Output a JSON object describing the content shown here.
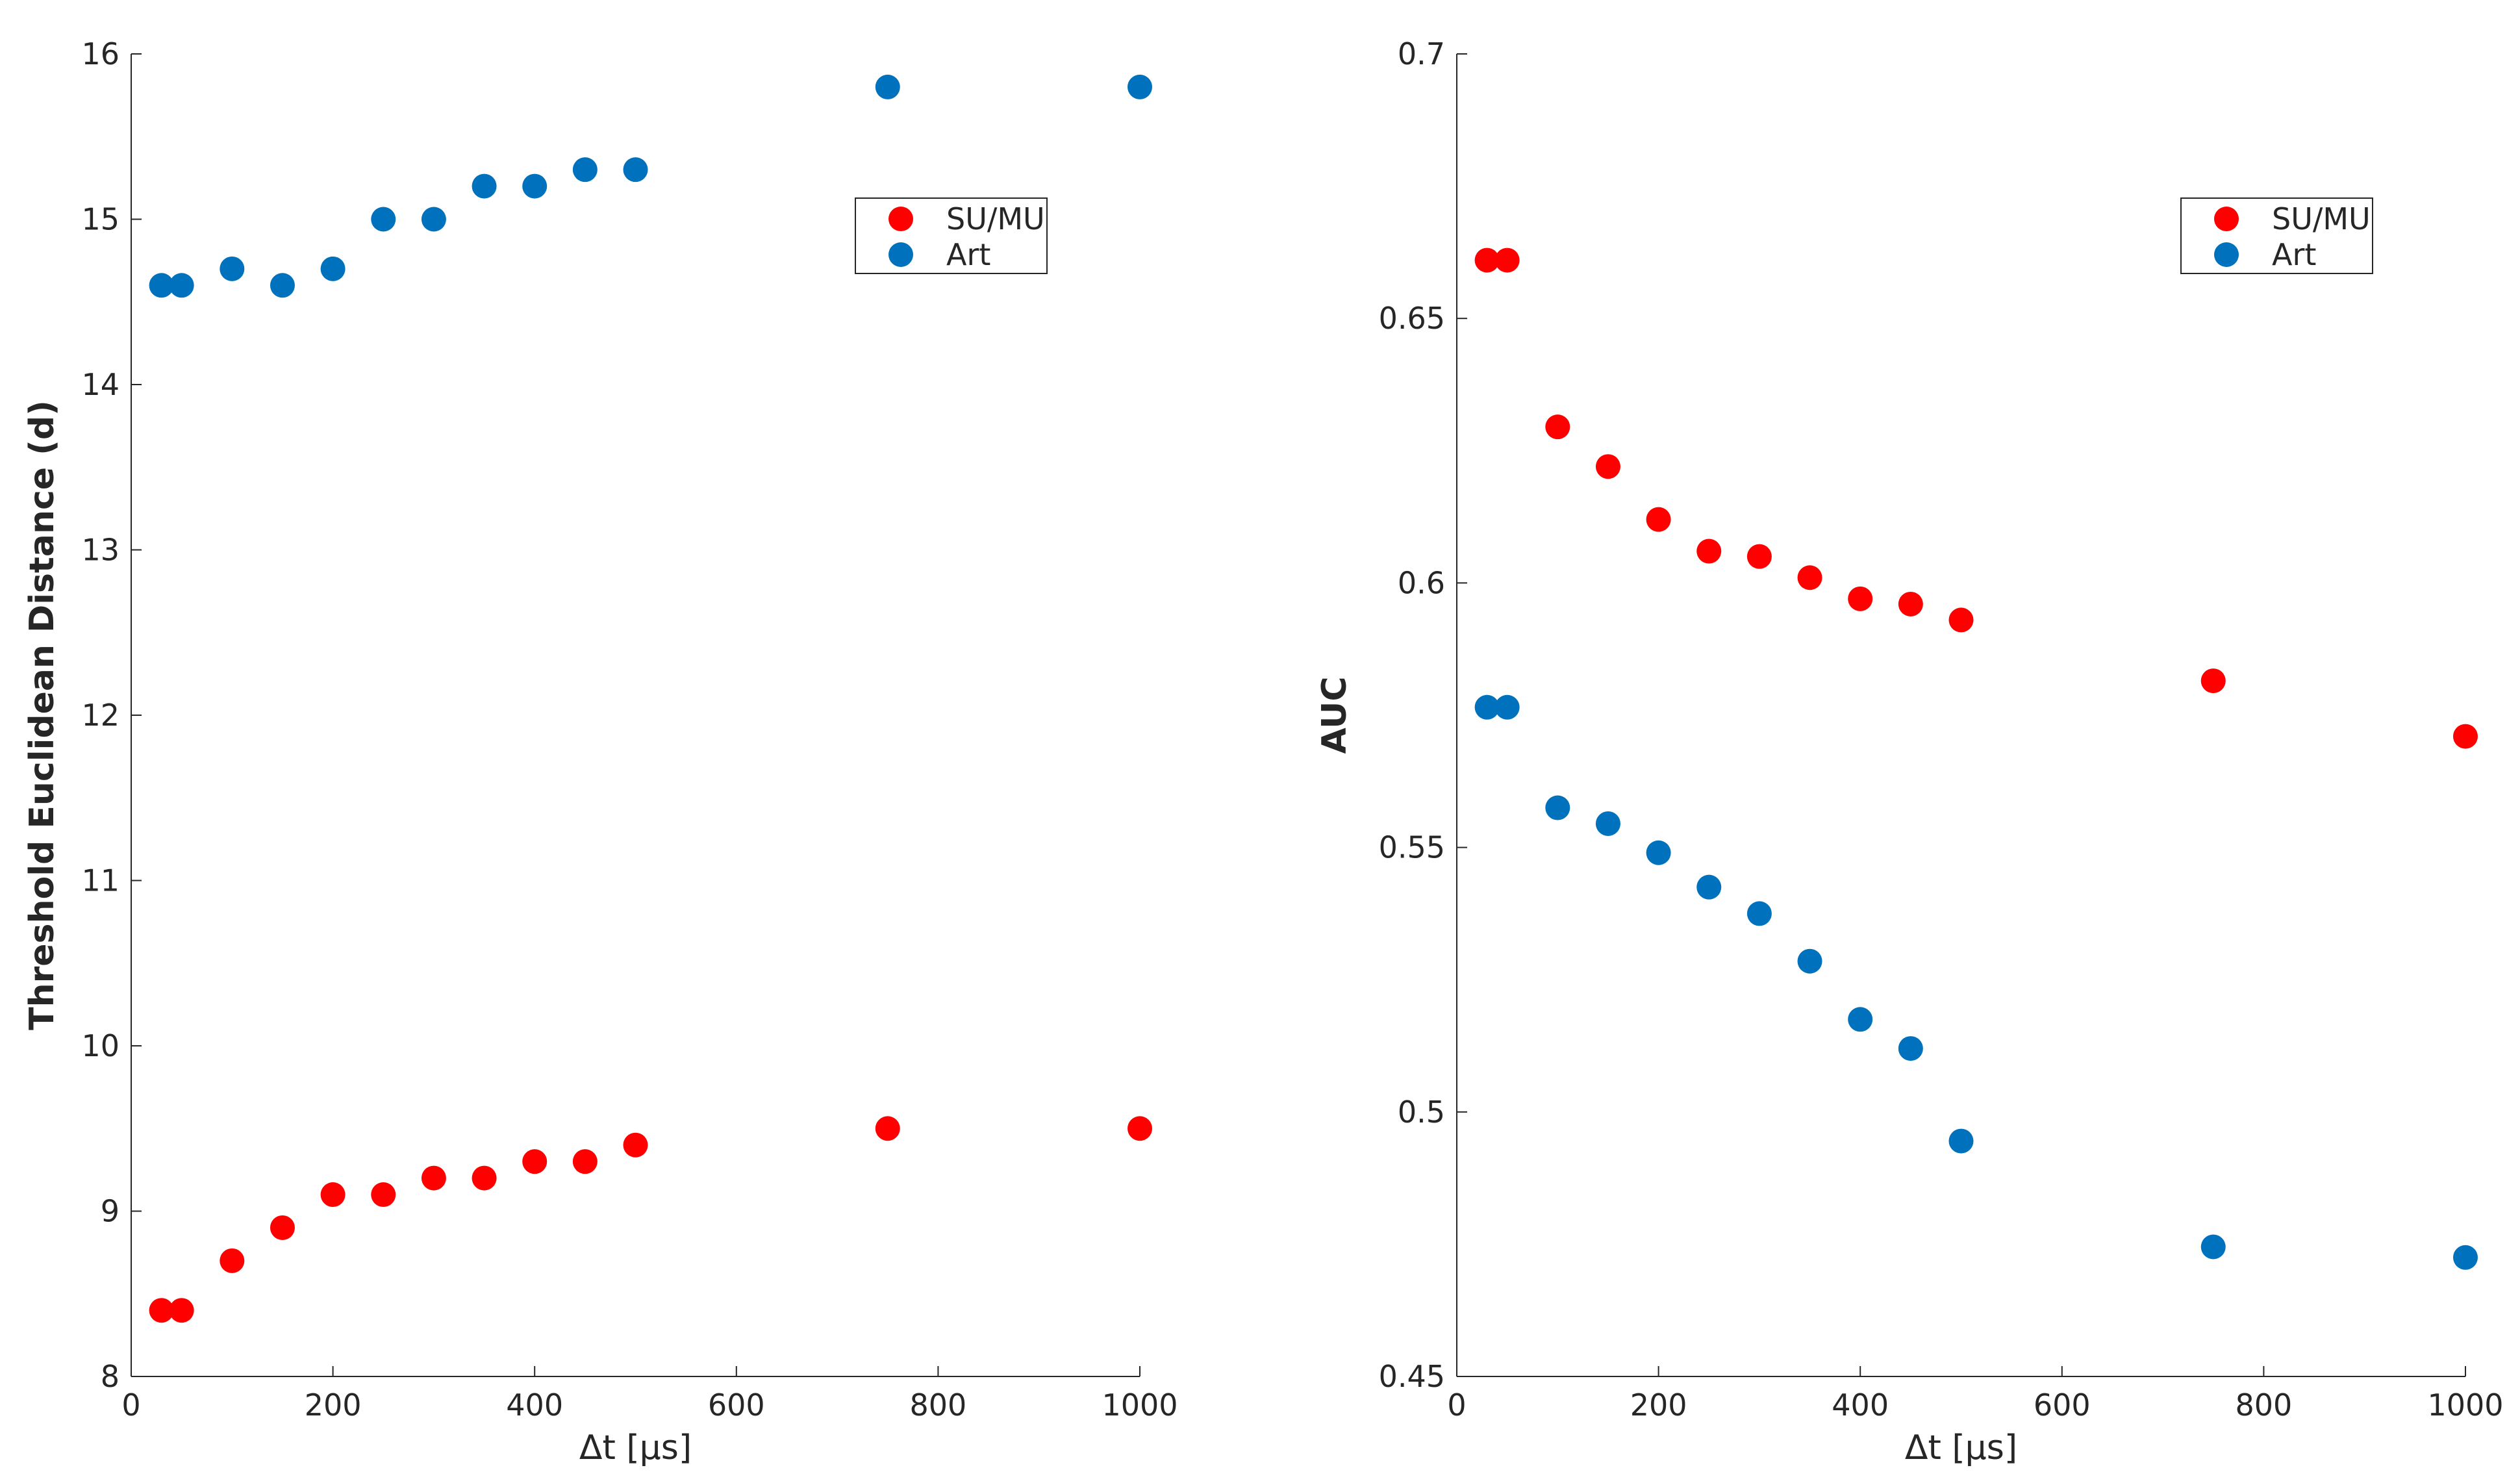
{
  "chart_data": [
    {
      "type": "scatter",
      "title": "",
      "xlabel": "Δt [µs]",
      "ylabel": "Threshold Euclidean Distance (d)",
      "xlim": [
        0,
        1000
      ],
      "ylim": [
        8,
        16
      ],
      "x_ticks": [
        0,
        200,
        400,
        600,
        800,
        1000
      ],
      "x_tick_labels": [
        "0",
        "200",
        "400",
        "600",
        "800",
        "1000"
      ],
      "y_ticks": [
        8,
        9,
        10,
        11,
        12,
        13,
        14,
        15,
        16
      ],
      "y_tick_labels": [
        "8",
        "9",
        "10",
        "11",
        "12",
        "13",
        "14",
        "15",
        "16"
      ],
      "grid": false,
      "legend_position": "top-right",
      "series": [
        {
          "name": "SU/MU",
          "color": "#ff0000",
          "x": [
            30,
            50,
            100,
            150,
            200,
            250,
            300,
            350,
            400,
            450,
            500,
            750,
            1000
          ],
          "y": [
            8.4,
            8.4,
            8.7,
            8.9,
            9.1,
            9.1,
            9.2,
            9.2,
            9.3,
            9.3,
            9.4,
            9.5,
            9.5
          ]
        },
        {
          "name": "Art",
          "color": "#0072bd",
          "x": [
            30,
            50,
            100,
            150,
            200,
            250,
            300,
            350,
            400,
            450,
            500,
            750,
            1000
          ],
          "y": [
            14.6,
            14.6,
            14.7,
            14.6,
            14.7,
            15.0,
            15.0,
            15.2,
            15.2,
            15.3,
            15.3,
            15.8,
            15.8
          ]
        }
      ]
    },
    {
      "type": "scatter",
      "title": "",
      "xlabel": "Δt [µs]",
      "ylabel": "AUC",
      "xlim": [
        0,
        1000
      ],
      "ylim": [
        0.45,
        0.7
      ],
      "x_ticks": [
        0,
        200,
        400,
        600,
        800,
        1000
      ],
      "x_tick_labels": [
        "0",
        "200",
        "400",
        "600",
        "800",
        "1000"
      ],
      "y_ticks": [
        0.45,
        0.5,
        0.55,
        0.6,
        0.65,
        0.7
      ],
      "y_tick_labels": [
        "0.45",
        "0.5",
        "0.55",
        "0.6",
        "0.65",
        "0.7"
      ],
      "grid": false,
      "legend_position": "top-right",
      "series": [
        {
          "name": "SU/MU",
          "color": "#ff0000",
          "x": [
            30,
            50,
            100,
            150,
            200,
            250,
            300,
            350,
            400,
            450,
            500,
            750,
            1000
          ],
          "y": [
            0.661,
            0.661,
            0.6295,
            0.622,
            0.612,
            0.606,
            0.605,
            0.601,
            0.597,
            0.596,
            0.593,
            0.5815,
            0.571
          ]
        },
        {
          "name": "Art",
          "color": "#0072bd",
          "x": [
            30,
            50,
            100,
            150,
            200,
            250,
            300,
            350,
            400,
            450,
            500,
            750,
            1000
          ],
          "y": [
            0.5765,
            0.5765,
            0.5575,
            0.5545,
            0.549,
            0.5425,
            0.5375,
            0.5285,
            0.5175,
            0.512,
            0.4945,
            0.4745,
            0.4725
          ]
        }
      ]
    }
  ]
}
